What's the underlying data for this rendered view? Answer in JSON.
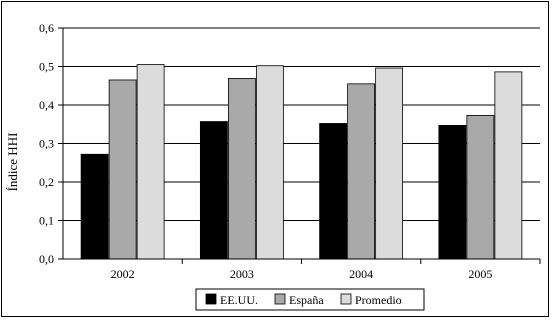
{
  "chart_data": {
    "type": "bar",
    "categories": [
      "2002",
      "2003",
      "2004",
      "2005"
    ],
    "series": [
      {
        "name": "EE.UU.",
        "color": "#000000",
        "values": [
          0.272,
          0.357,
          0.352,
          0.347
        ]
      },
      {
        "name": "España",
        "color": "#a9a9a9",
        "values": [
          0.465,
          0.469,
          0.455,
          0.373
        ]
      },
      {
        "name": "Promedio",
        "color": "#dcdcdc",
        "values": [
          0.505,
          0.502,
          0.496,
          0.486
        ]
      }
    ],
    "title": "",
    "xlabel": "",
    "ylabel": "Índice HHI",
    "ylim": [
      0,
      0.6
    ],
    "yticks": [
      "0,0",
      "0,1",
      "0,2",
      "0,3",
      "0,4",
      "0,5",
      "0,6"
    ],
    "grid": true,
    "legend": "bottom"
  }
}
